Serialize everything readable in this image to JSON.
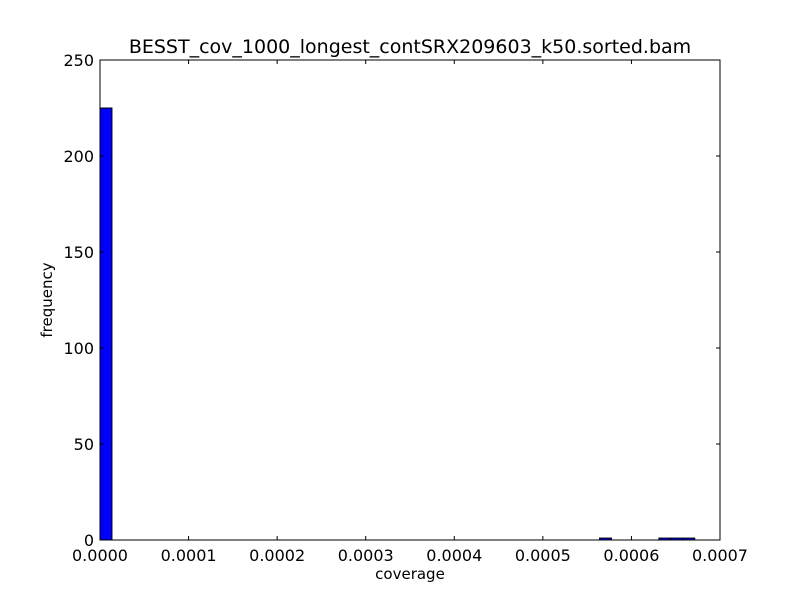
{
  "chart_data": {
    "type": "bar",
    "title": "BESST_cov_1000_longest_contSRX209603_k50.sorted.bam",
    "xlabel": "coverage",
    "ylabel": "frequency",
    "xlim": [
      0,
      0.0007
    ],
    "ylim": [
      0,
      250
    ],
    "xticks": [
      "0.0000",
      "0.0001",
      "0.0002",
      "0.0003",
      "0.0004",
      "0.0005",
      "0.0006",
      "0.0007"
    ],
    "yticks": [
      "0",
      "50",
      "100",
      "150",
      "200",
      "250"
    ],
    "grid": false,
    "bar_color": "#0000ff",
    "bins": [
      {
        "x0": 0.0,
        "x1": 1.35e-05,
        "value": 225
      },
      {
        "x0": 0.000564,
        "x1": 0.0005775,
        "value": 1
      },
      {
        "x0": 0.000631,
        "x1": 0.0006445,
        "value": 1
      },
      {
        "x0": 0.0006445,
        "x1": 0.000658,
        "value": 1
      },
      {
        "x0": 0.000658,
        "x1": 0.0006715,
        "value": 1
      }
    ]
  }
}
